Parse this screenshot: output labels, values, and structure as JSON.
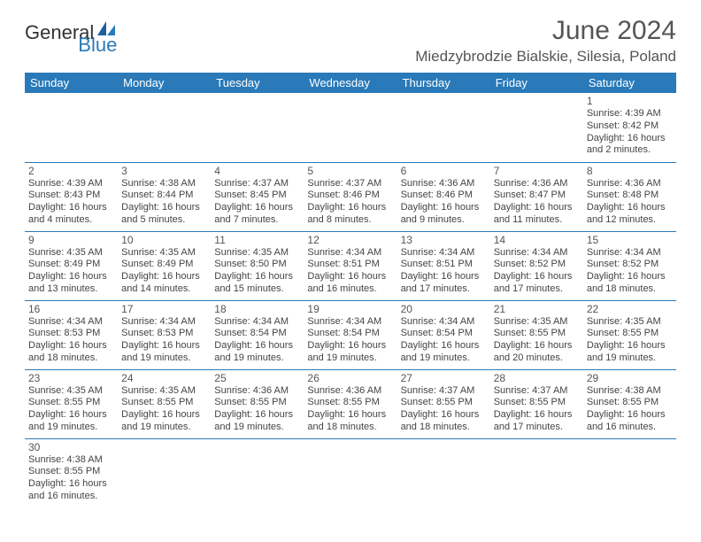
{
  "logo": {
    "main": "General",
    "sub": "Blue"
  },
  "title": "June 2024",
  "location": "Miedzybrodzie Bialskie, Silesia, Poland",
  "colors": {
    "header_bg": "#2a7ab9",
    "header_text": "#ffffff",
    "border": "#2a7ab9",
    "body_text": "#444444",
    "title_text": "#555555"
  },
  "weekdays": [
    "Sunday",
    "Monday",
    "Tuesday",
    "Wednesday",
    "Thursday",
    "Friday",
    "Saturday"
  ],
  "days": [
    {
      "n": 1,
      "rise": "4:39 AM",
      "set": "8:42 PM",
      "dl": "16 hours and 2 minutes."
    },
    {
      "n": 2,
      "rise": "4:39 AM",
      "set": "8:43 PM",
      "dl": "16 hours and 4 minutes."
    },
    {
      "n": 3,
      "rise": "4:38 AM",
      "set": "8:44 PM",
      "dl": "16 hours and 5 minutes."
    },
    {
      "n": 4,
      "rise": "4:37 AM",
      "set": "8:45 PM",
      "dl": "16 hours and 7 minutes."
    },
    {
      "n": 5,
      "rise": "4:37 AM",
      "set": "8:46 PM",
      "dl": "16 hours and 8 minutes."
    },
    {
      "n": 6,
      "rise": "4:36 AM",
      "set": "8:46 PM",
      "dl": "16 hours and 9 minutes."
    },
    {
      "n": 7,
      "rise": "4:36 AM",
      "set": "8:47 PM",
      "dl": "16 hours and 11 minutes."
    },
    {
      "n": 8,
      "rise": "4:36 AM",
      "set": "8:48 PM",
      "dl": "16 hours and 12 minutes."
    },
    {
      "n": 9,
      "rise": "4:35 AM",
      "set": "8:49 PM",
      "dl": "16 hours and 13 minutes."
    },
    {
      "n": 10,
      "rise": "4:35 AM",
      "set": "8:49 PM",
      "dl": "16 hours and 14 minutes."
    },
    {
      "n": 11,
      "rise": "4:35 AM",
      "set": "8:50 PM",
      "dl": "16 hours and 15 minutes."
    },
    {
      "n": 12,
      "rise": "4:34 AM",
      "set": "8:51 PM",
      "dl": "16 hours and 16 minutes."
    },
    {
      "n": 13,
      "rise": "4:34 AM",
      "set": "8:51 PM",
      "dl": "16 hours and 17 minutes."
    },
    {
      "n": 14,
      "rise": "4:34 AM",
      "set": "8:52 PM",
      "dl": "16 hours and 17 minutes."
    },
    {
      "n": 15,
      "rise": "4:34 AM",
      "set": "8:52 PM",
      "dl": "16 hours and 18 minutes."
    },
    {
      "n": 16,
      "rise": "4:34 AM",
      "set": "8:53 PM",
      "dl": "16 hours and 18 minutes."
    },
    {
      "n": 17,
      "rise": "4:34 AM",
      "set": "8:53 PM",
      "dl": "16 hours and 19 minutes."
    },
    {
      "n": 18,
      "rise": "4:34 AM",
      "set": "8:54 PM",
      "dl": "16 hours and 19 minutes."
    },
    {
      "n": 19,
      "rise": "4:34 AM",
      "set": "8:54 PM",
      "dl": "16 hours and 19 minutes."
    },
    {
      "n": 20,
      "rise": "4:34 AM",
      "set": "8:54 PM",
      "dl": "16 hours and 19 minutes."
    },
    {
      "n": 21,
      "rise": "4:35 AM",
      "set": "8:55 PM",
      "dl": "16 hours and 20 minutes."
    },
    {
      "n": 22,
      "rise": "4:35 AM",
      "set": "8:55 PM",
      "dl": "16 hours and 19 minutes."
    },
    {
      "n": 23,
      "rise": "4:35 AM",
      "set": "8:55 PM",
      "dl": "16 hours and 19 minutes."
    },
    {
      "n": 24,
      "rise": "4:35 AM",
      "set": "8:55 PM",
      "dl": "16 hours and 19 minutes."
    },
    {
      "n": 25,
      "rise": "4:36 AM",
      "set": "8:55 PM",
      "dl": "16 hours and 19 minutes."
    },
    {
      "n": 26,
      "rise": "4:36 AM",
      "set": "8:55 PM",
      "dl": "16 hours and 18 minutes."
    },
    {
      "n": 27,
      "rise": "4:37 AM",
      "set": "8:55 PM",
      "dl": "16 hours and 18 minutes."
    },
    {
      "n": 28,
      "rise": "4:37 AM",
      "set": "8:55 PM",
      "dl": "16 hours and 17 minutes."
    },
    {
      "n": 29,
      "rise": "4:38 AM",
      "set": "8:55 PM",
      "dl": "16 hours and 16 minutes."
    },
    {
      "n": 30,
      "rise": "4:38 AM",
      "set": "8:55 PM",
      "dl": "16 hours and 16 minutes."
    }
  ],
  "first_weekday_index": 6,
  "labels": {
    "sunrise": "Sunrise:",
    "sunset": "Sunset:",
    "daylight": "Daylight:"
  }
}
